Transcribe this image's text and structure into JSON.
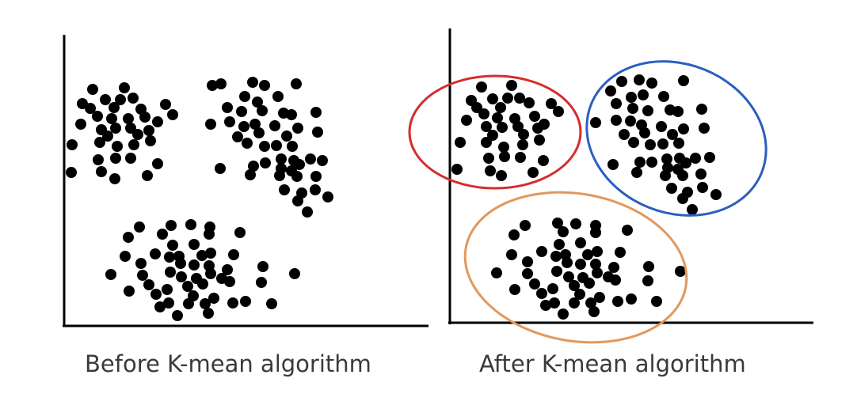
{
  "captions": {
    "before": "Before K-mean algorithm",
    "after": "After K-mean algorithm"
  },
  "colors": {
    "points": "#000000",
    "axes": "#000000",
    "cluster_1": "#d62d2d",
    "cluster_2": "#2a5fbf",
    "cluster_3": "#e3975a",
    "caption_text": "#3a3a3a"
  }
}
